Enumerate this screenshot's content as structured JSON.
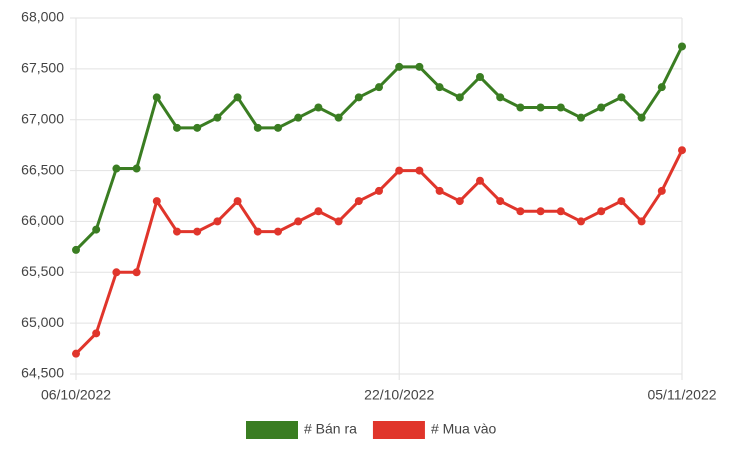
{
  "chart_data": {
    "type": "line",
    "categories": [
      "06/10/2022",
      null,
      null,
      null,
      null,
      null,
      null,
      null,
      null,
      null,
      null,
      null,
      null,
      null,
      null,
      null,
      "22/10/2022",
      null,
      null,
      null,
      null,
      null,
      null,
      null,
      null,
      null,
      null,
      null,
      null,
      null,
      "05/11/2022"
    ],
    "series": [
      {
        "name": "# Bán ra",
        "color": "#3a7d22",
        "values": [
          65720,
          65920,
          66520,
          66520,
          67220,
          66920,
          66920,
          67020,
          67220,
          66920,
          66920,
          67020,
          67120,
          67020,
          67220,
          67320,
          67520,
          67520,
          67320,
          67220,
          67420,
          67220,
          67120,
          67120,
          67120,
          67020,
          67120,
          67220,
          67020,
          67320,
          67720
        ]
      },
      {
        "name": "# Mua vào",
        "color": "#e0352b",
        "values": [
          64700,
          64900,
          65500,
          65500,
          66200,
          65900,
          65900,
          66000,
          66200,
          65900,
          65900,
          66000,
          66100,
          66000,
          66200,
          66300,
          66500,
          66500,
          66300,
          66200,
          66400,
          66200,
          66100,
          66100,
          66100,
          66000,
          66100,
          66200,
          66000,
          66300,
          66700
        ]
      }
    ],
    "ylim": [
      64500,
      68000
    ],
    "yticks": [
      {
        "value": 64500,
        "label": "64,500"
      },
      {
        "value": 65000,
        "label": "65,000"
      },
      {
        "value": 65500,
        "label": "65,500"
      },
      {
        "value": 66000,
        "label": "66,000"
      },
      {
        "value": 66500,
        "label": "66,500"
      },
      {
        "value": 67000,
        "label": "67,000"
      },
      {
        "value": 67500,
        "label": "67,500"
      },
      {
        "value": 68000,
        "label": "68,000"
      }
    ],
    "grid": true,
    "legend": "bottom"
  }
}
